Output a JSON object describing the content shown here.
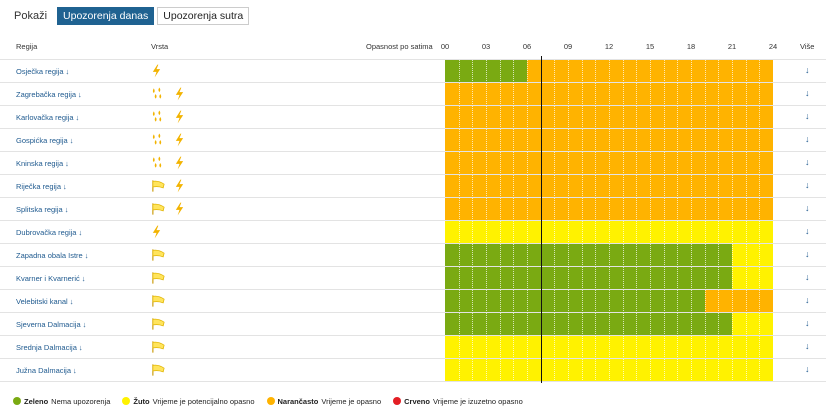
{
  "toolbar": {
    "show_label": "Pokaži",
    "tab_today": "Upozorenja danas",
    "tab_tomorrow": "Upozorenja sutra"
  },
  "columns": {
    "region": "Regija",
    "type": "Vrsta",
    "hazard": "Opasnost po satima",
    "more": "Više"
  },
  "hours": [
    "00",
    "03",
    "06",
    "09",
    "12",
    "15",
    "18",
    "21",
    "24"
  ],
  "more_icon": "↓",
  "current_time_hours": 7,
  "colors": {
    "green": "#7aaa12",
    "yellow": "#fff200",
    "orange": "#ffb300",
    "red": "#e31e24"
  },
  "regions": [
    {
      "name": "Osječka regija",
      "types": [
        "lightning-icon"
      ],
      "segments": [
        {
          "from": 0,
          "to": 6,
          "level": "green"
        },
        {
          "from": 6,
          "to": 24,
          "level": "orange"
        }
      ]
    },
    {
      "name": "Zagrebačka regija",
      "types": [
        "rain-drops-icon",
        "lightning-icon"
      ],
      "segments": [
        {
          "from": 0,
          "to": 24,
          "level": "orange"
        }
      ]
    },
    {
      "name": "Karlovačka regija",
      "types": [
        "rain-drops-icon",
        "lightning-icon"
      ],
      "segments": [
        {
          "from": 0,
          "to": 24,
          "level": "orange"
        }
      ]
    },
    {
      "name": "Gospićka regija",
      "types": [
        "rain-drops-icon",
        "lightning-icon"
      ],
      "segments": [
        {
          "from": 0,
          "to": 24,
          "level": "orange"
        }
      ]
    },
    {
      "name": "Kninska regija",
      "types": [
        "rain-drops-icon",
        "lightning-icon"
      ],
      "segments": [
        {
          "from": 0,
          "to": 24,
          "level": "orange"
        }
      ]
    },
    {
      "name": "Riječka regija",
      "types": [
        "wind-flag-icon",
        "lightning-icon"
      ],
      "segments": [
        {
          "from": 0,
          "to": 24,
          "level": "orange"
        }
      ]
    },
    {
      "name": "Splitska regija",
      "types": [
        "wind-flag-icon",
        "lightning-icon"
      ],
      "segments": [
        {
          "from": 0,
          "to": 24,
          "level": "orange"
        }
      ]
    },
    {
      "name": "Dubrovačka regija",
      "types": [
        "lightning-icon"
      ],
      "segments": [
        {
          "from": 0,
          "to": 24,
          "level": "yellow"
        }
      ]
    },
    {
      "name": "Zapadna obala Istre",
      "types": [
        "wind-flag-icon"
      ],
      "segments": [
        {
          "from": 0,
          "to": 21,
          "level": "green"
        },
        {
          "from": 21,
          "to": 24,
          "level": "yellow"
        }
      ]
    },
    {
      "name": "Kvarner i Kvarnerić",
      "types": [
        "wind-flag-icon"
      ],
      "segments": [
        {
          "from": 0,
          "to": 21,
          "level": "green"
        },
        {
          "from": 21,
          "to": 24,
          "level": "yellow"
        }
      ]
    },
    {
      "name": "Velebitski kanal",
      "types": [
        "wind-flag-icon"
      ],
      "segments": [
        {
          "from": 0,
          "to": 19,
          "level": "green"
        },
        {
          "from": 19,
          "to": 24,
          "level": "orange"
        }
      ]
    },
    {
      "name": "Sjeverna Dalmacija",
      "types": [
        "wind-flag-icon"
      ],
      "segments": [
        {
          "from": 0,
          "to": 21,
          "level": "green"
        },
        {
          "from": 21,
          "to": 24,
          "level": "yellow"
        }
      ]
    },
    {
      "name": "Srednja Dalmacija",
      "types": [
        "wind-flag-icon"
      ],
      "segments": [
        {
          "from": 0,
          "to": 24,
          "level": "yellow"
        }
      ]
    },
    {
      "name": "Južna Dalmacija",
      "types": [
        "wind-flag-icon"
      ],
      "segments": [
        {
          "from": 0,
          "to": 24,
          "level": "yellow"
        }
      ]
    }
  ],
  "legend": [
    {
      "key": "green",
      "title": "Zeleno",
      "desc": "Nema upozorenja"
    },
    {
      "key": "yellow",
      "title": "Žuto",
      "desc": "Vrijeme je potencijalno opasno"
    },
    {
      "key": "orange",
      "title": "Narančasto",
      "desc": "Vrijeme je opasno"
    },
    {
      "key": "red",
      "title": "Crveno",
      "desc": "Vrijeme je izuzetno opasno"
    }
  ]
}
